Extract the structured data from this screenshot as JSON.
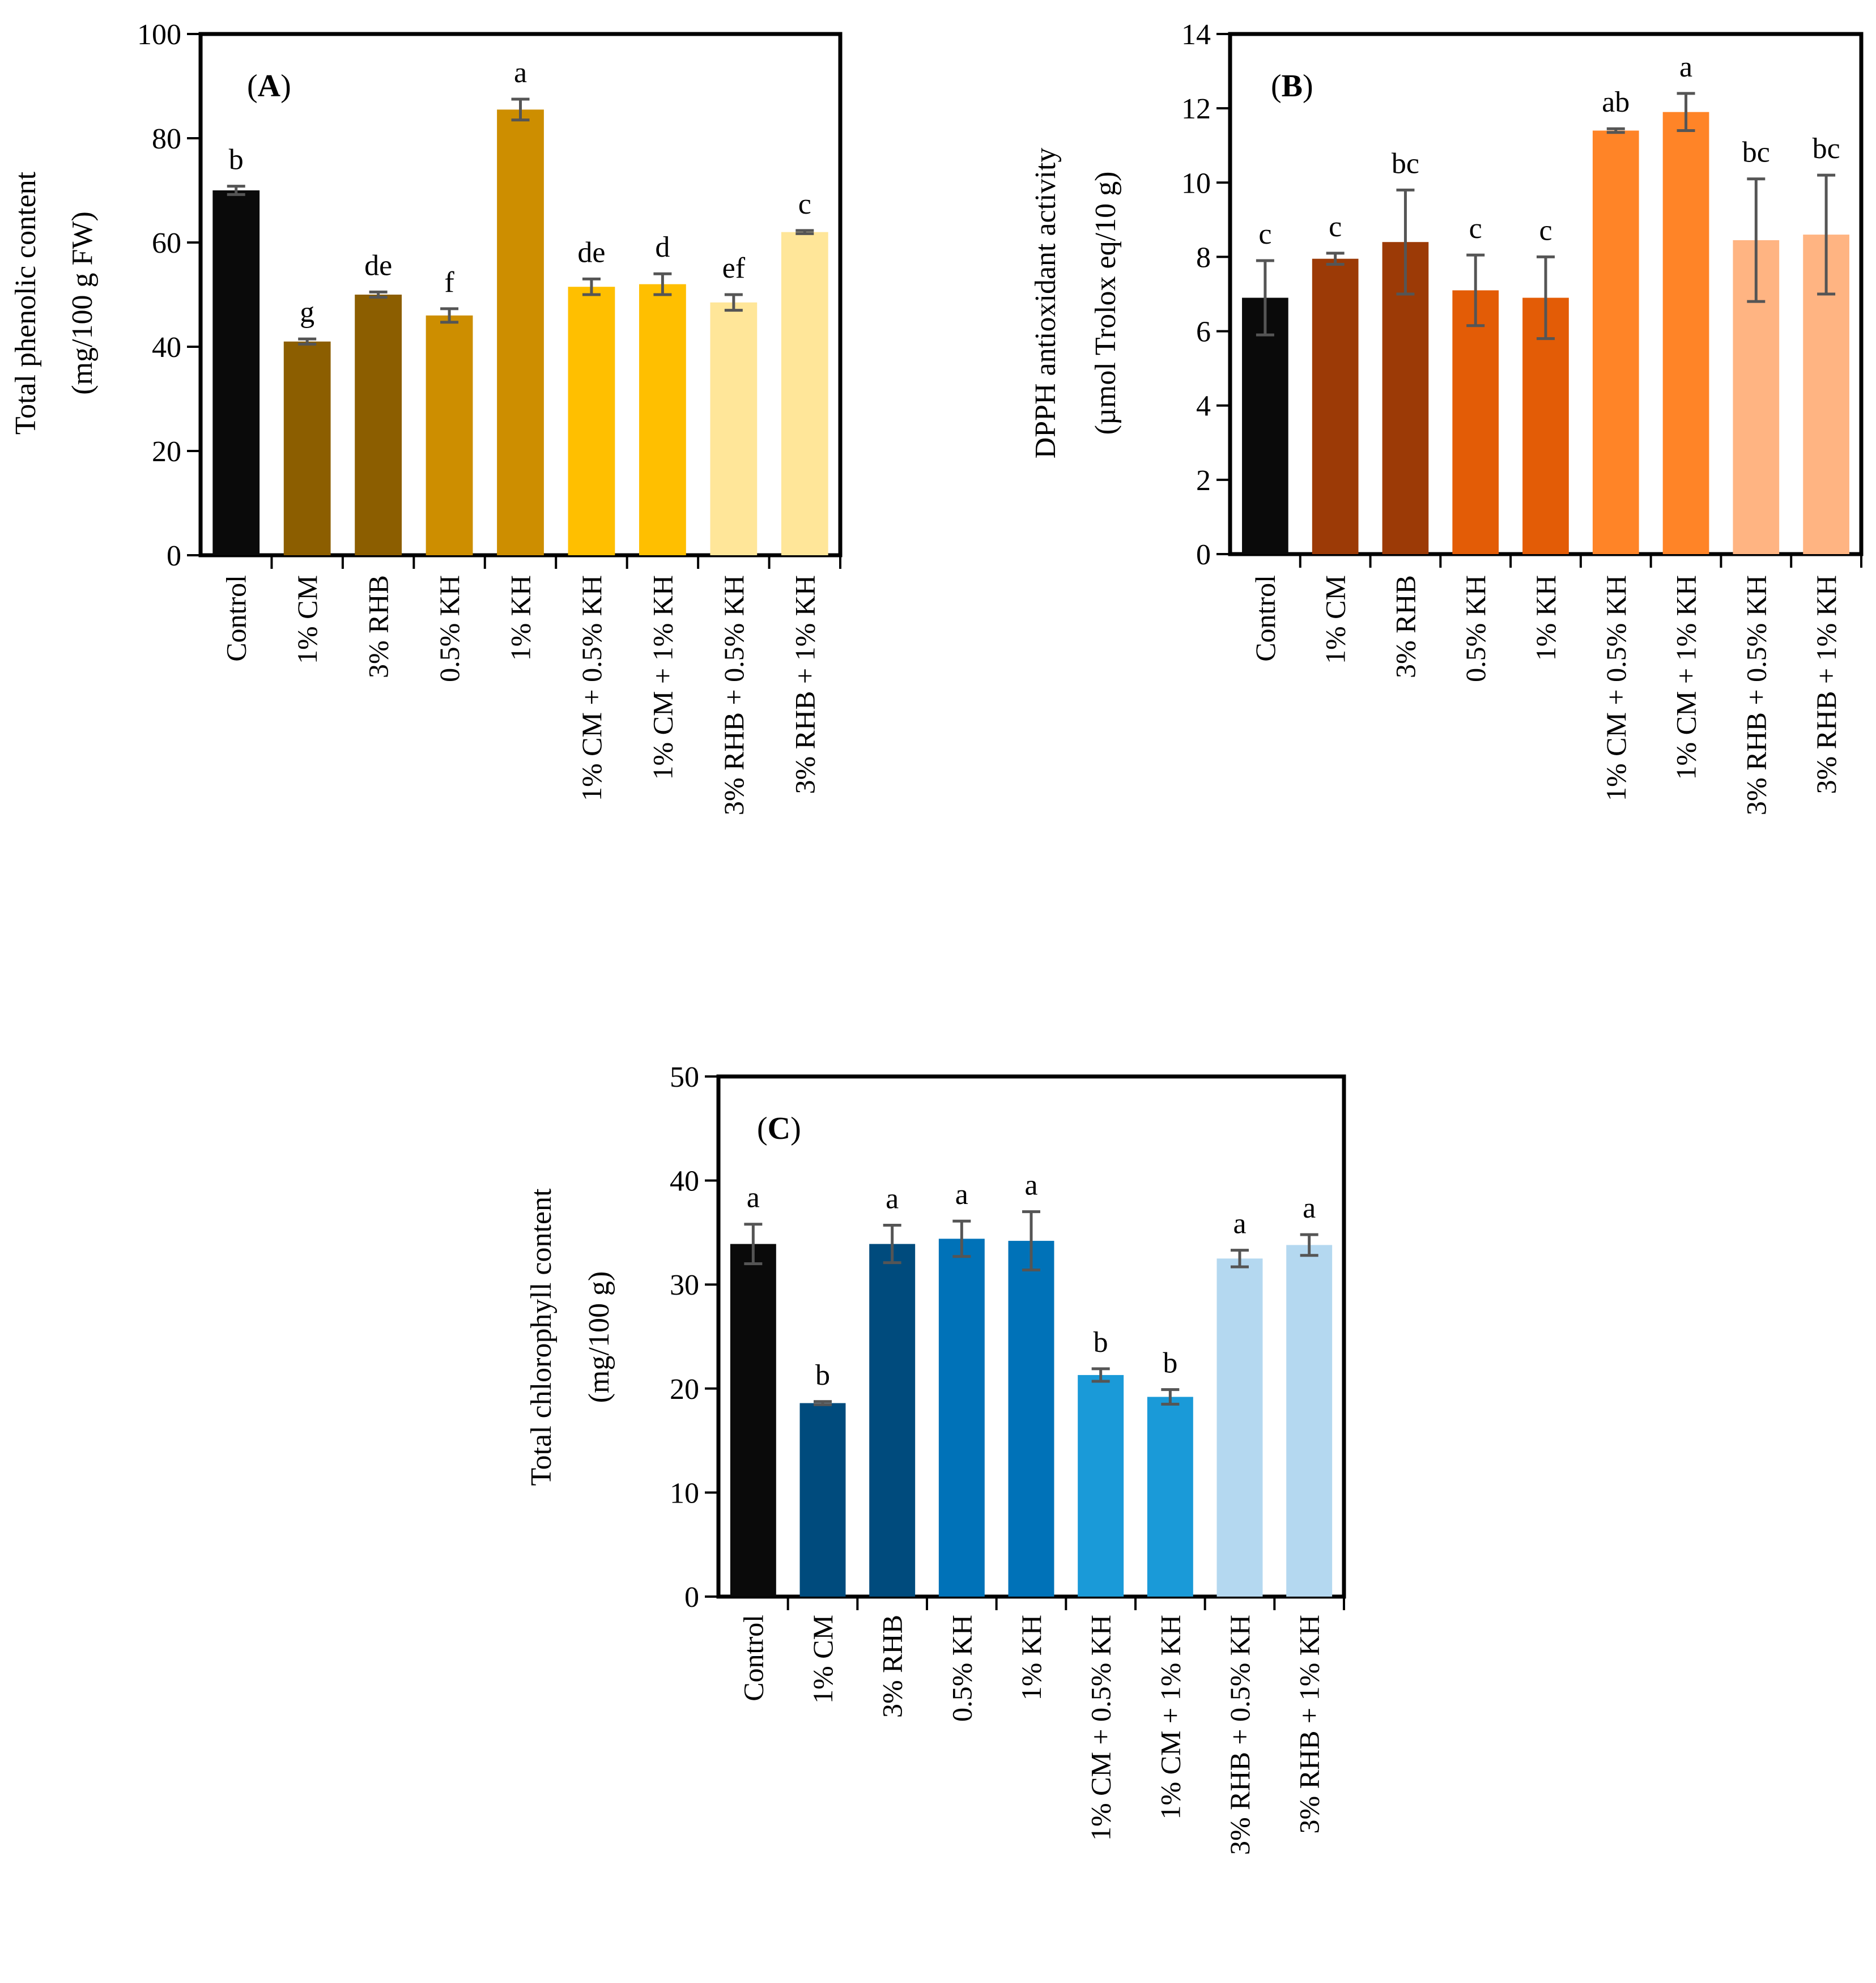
{
  "chart_data": [
    {
      "type": "bar",
      "panel": "A",
      "panel_label": {
        "open": "(",
        "letter": "A",
        "close": ")"
      },
      "ylabel_lines": [
        "Total phenolic content",
        "(mg/100 g FW)"
      ],
      "ylim": [
        0,
        100
      ],
      "yticks": [
        "0",
        "20",
        "40",
        "60",
        "80",
        "100"
      ],
      "categories": [
        "Control",
        "1% CM",
        "3% RHB",
        "0.5% KH",
        "1% KH",
        "1% CM + 0.5% KH",
        "1% CM + 1% KH",
        "3% RHB + 0.5% KH",
        "3% RHB + 1% KH"
      ],
      "values": [
        70.0,
        41.0,
        50.0,
        46.0,
        85.5,
        51.5,
        52.0,
        48.5,
        62.0
      ],
      "errors": [
        0.8,
        0.5,
        0.5,
        1.3,
        2.0,
        1.5,
        2.0,
        1.5,
        0.3
      ],
      "letters": [
        "b",
        "g",
        "de",
        "f",
        "a",
        "de",
        "d",
        "ef",
        "c"
      ],
      "colors": [
        "#0a0a0a",
        "#8c5e00",
        "#8c5e00",
        "#cd8e00",
        "#cd8e00",
        "#ffbf00",
        "#ffbf00",
        "#ffe699",
        "#ffe699"
      ]
    },
    {
      "type": "bar",
      "panel": "B",
      "panel_label": {
        "open": "(",
        "letter": "B",
        "close": ")"
      },
      "ylabel_lines": [
        "DPPH antioxidant activity",
        "(µmol Trolox eq/10 g)"
      ],
      "ylim": [
        0,
        14
      ],
      "yticks": [
        "0",
        "2",
        "4",
        "6",
        "8",
        "10",
        "12",
        "14"
      ],
      "categories": [
        "Control",
        "1% CM",
        "3% RHB",
        "0.5% KH",
        "1% KH",
        "1% CM + 0.5% KH",
        "1% CM + 1% KH",
        "3% RHB + 0.5% KH",
        "3% RHB + 1% KH"
      ],
      "values": [
        6.9,
        7.95,
        8.4,
        7.1,
        6.9,
        11.4,
        11.9,
        8.45,
        8.6
      ],
      "errors": [
        1.0,
        0.15,
        1.4,
        0.95,
        1.1,
        0.05,
        0.5,
        1.65,
        1.6
      ],
      "letters": [
        "c",
        "c",
        "bc",
        "c",
        "c",
        "ab",
        "a",
        "bc",
        "bc"
      ],
      "colors": [
        "#0a0a0a",
        "#9c3a06",
        "#9c3a06",
        "#e35c06",
        "#e35c06",
        "#ff8427",
        "#ff8427",
        "#ffb482",
        "#ffb482"
      ]
    },
    {
      "type": "bar",
      "panel": "C",
      "panel_label": {
        "open": "(",
        "letter": "C",
        "close": ")"
      },
      "ylabel_lines": [
        "Total chlorophyll content",
        "(mg/100 g)"
      ],
      "ylim": [
        0,
        50
      ],
      "yticks": [
        "0",
        "10",
        "20",
        "30",
        "40",
        "50"
      ],
      "categories": [
        "Control",
        "1% CM",
        "3% RHB",
        "0.5% KH",
        "1% KH",
        "1% CM + 0.5% KH",
        "1% CM + 1% KH",
        "3% RHB + 0.5% KH",
        "3% RHB + 1% KH"
      ],
      "values": [
        33.9,
        18.6,
        33.9,
        34.4,
        34.2,
        21.3,
        19.2,
        32.5,
        33.8
      ],
      "errors": [
        1.9,
        0.15,
        1.8,
        1.7,
        2.8,
        0.6,
        0.7,
        0.8,
        1.0
      ],
      "letters": [
        "a",
        "b",
        "a",
        "a",
        "a",
        "b",
        "b",
        "a",
        "a"
      ],
      "colors": [
        "#0a0a0a",
        "#004b7d",
        "#004b7d",
        "#0072b8",
        "#0072b8",
        "#1a9ad8",
        "#1a9ad8",
        "#b4d8f0",
        "#b4d8f0"
      ]
    }
  ]
}
